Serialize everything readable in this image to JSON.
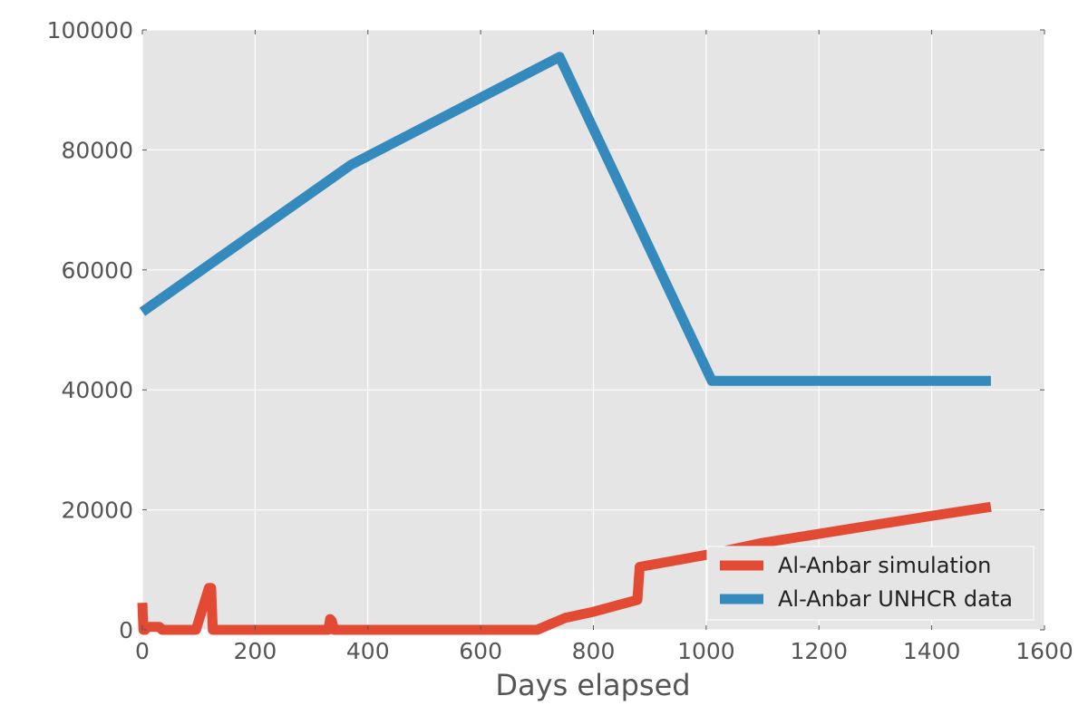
{
  "chart_data": {
    "type": "line",
    "title": "",
    "xlabel": "Days elapsed",
    "ylabel": "",
    "xlim": [
      0,
      1600
    ],
    "ylim": [
      0,
      100000
    ],
    "xticks": [
      0,
      200,
      400,
      600,
      800,
      1000,
      1200,
      1400,
      1600
    ],
    "yticks": [
      0,
      20000,
      40000,
      60000,
      80000,
      100000
    ],
    "grid": true,
    "legend_position": "lower-right",
    "series": [
      {
        "name": "Al-Anbar simulation",
        "color": "#e24a33",
        "x": [
          0,
          2,
          5,
          8,
          30,
          35,
          60,
          90,
          95,
          118,
          122,
          125,
          200,
          330,
          333,
          336,
          340,
          400,
          500,
          600,
          700,
          750,
          800,
          878,
          882,
          1000,
          1100,
          1200,
          1300,
          1400,
          1505
        ],
        "y": [
          4500,
          0,
          0,
          500,
          500,
          0,
          0,
          0,
          0,
          7000,
          7000,
          0,
          0,
          0,
          1800,
          1500,
          0,
          0,
          0,
          0,
          0,
          2000,
          3000,
          5000,
          10500,
          12500,
          14500,
          16000,
          17500,
          19000,
          20500
        ]
      },
      {
        "name": "Al-Anbar UNHCR data",
        "color": "#348abd",
        "x": [
          0,
          370,
          740,
          1010,
          1505
        ],
        "y": [
          53000,
          77500,
          95500,
          41500,
          41500
        ]
      }
    ]
  }
}
